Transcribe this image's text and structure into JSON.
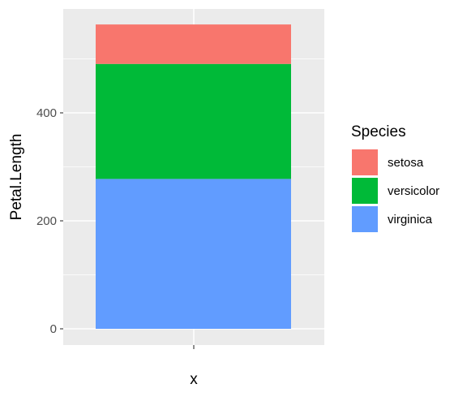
{
  "chart_data": {
    "type": "bar",
    "stacked": true,
    "categories": [
      ""
    ],
    "xlabel": "x",
    "ylabel": "Petal.Length",
    "ylim": [
      0,
      600
    ],
    "yticks": [
      0,
      200,
      400
    ],
    "grid": true,
    "legend": {
      "title": "Species",
      "placement": "right"
    },
    "series": [
      {
        "name": "setosa",
        "values": [
          73.1
        ],
        "color": "#F8766D"
      },
      {
        "name": "versicolor",
        "values": [
          213.0
        ],
        "color": "#00BA38"
      },
      {
        "name": "virginica",
        "values": [
          277.6
        ],
        "color": "#619CFF"
      }
    ],
    "stack_order_bottom_to_top": [
      "virginica",
      "versicolor",
      "setosa"
    ],
    "panel_background": "#EBEBEB",
    "grid_color": "#FFFFFF"
  }
}
